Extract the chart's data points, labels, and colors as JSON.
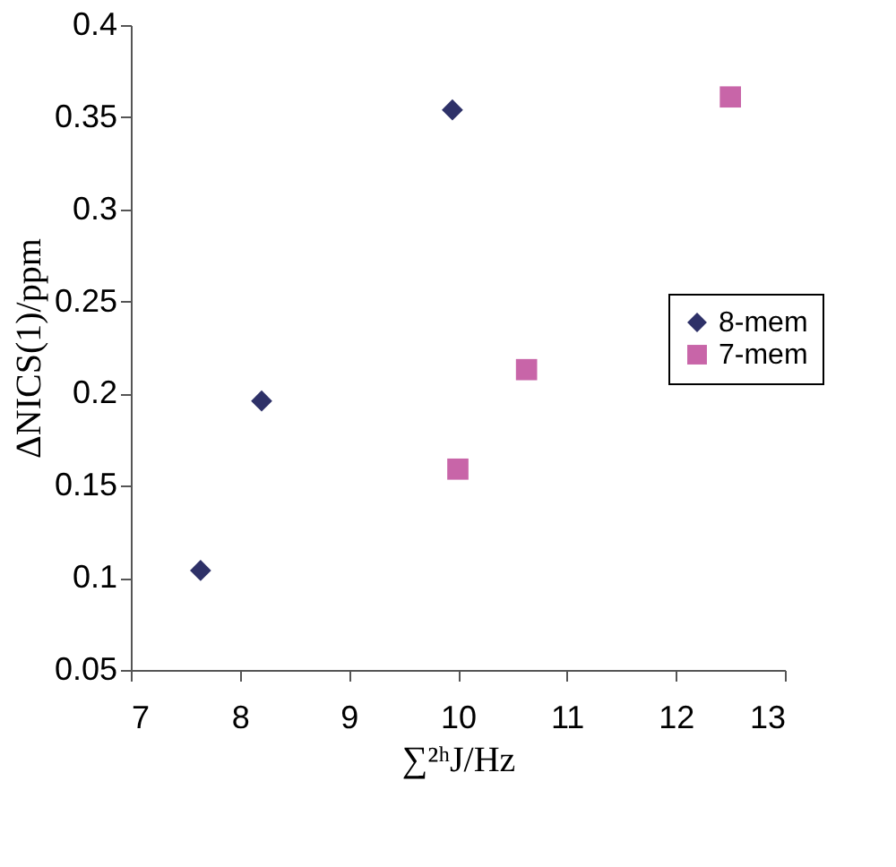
{
  "chart_data": {
    "type": "scatter",
    "xlabel": "∑²ʰJ/Hz",
    "ylabel": "ΔNICS(1)/ppm",
    "xlim": [
      7,
      13
    ],
    "xticks": [
      7,
      8,
      9,
      10,
      11,
      12,
      13
    ],
    "ylim": [
      0.05,
      0.4
    ],
    "yticks": [
      0.05,
      0.1,
      0.15,
      0.2,
      0.25,
      0.3,
      0.35,
      0.4
    ],
    "grid": false,
    "legend": "right",
    "series": [
      {
        "name": "8-mem",
        "color": "#2e3168",
        "marker": "diamond",
        "x": [
          7.64,
          8.2,
          9.95
        ],
        "values": [
          0.104,
          0.196,
          0.354
        ]
      },
      {
        "name": "7-mem",
        "color": "#c865a8",
        "marker": "square",
        "x": [
          10.0,
          10.63,
          12.5
        ],
        "values": [
          0.159,
          0.213,
          0.361
        ]
      }
    ]
  }
}
